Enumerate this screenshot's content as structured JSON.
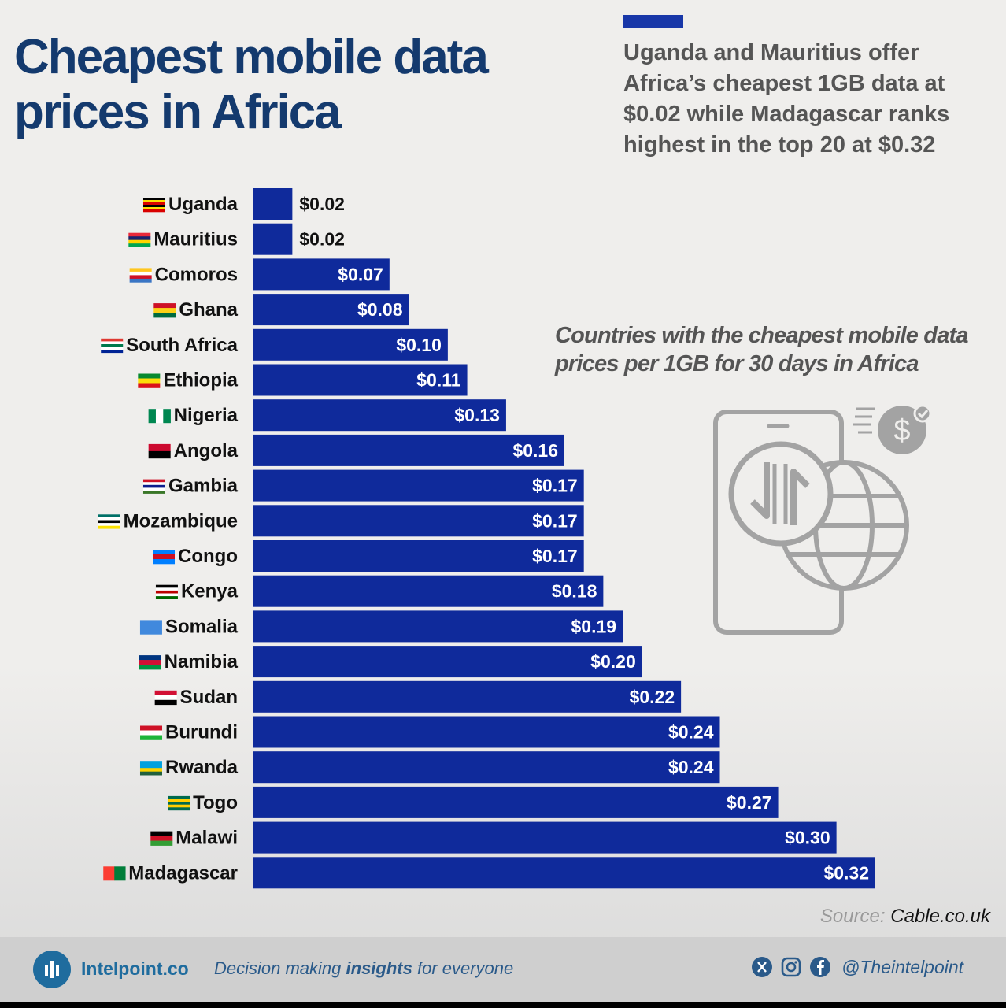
{
  "header": {
    "title_line1": "Cheapest mobile data",
    "title_line2": "prices in Africa",
    "summary": "Uganda and Mauritius offer Africa’s cheapest 1GB data at $0.02 while Madagascar ranks highest in the top 20 at $0.32",
    "subtitle": "Countries with the cheapest mobile data prices per 1GB for 30 days in Africa"
  },
  "source": {
    "label": "Source:",
    "name": "Cable.co.uk"
  },
  "footer": {
    "brand": "Intelpoint.co",
    "tagline_pre": "Decision making ",
    "tagline_bold": "insights",
    "tagline_post": " for everyone",
    "handle": "@Theintelpoint"
  },
  "colors": {
    "bar": "#0f2a9b",
    "title": "#143a6e",
    "accent": "#1837a8"
  },
  "chart_data": {
    "type": "bar",
    "orientation": "horizontal",
    "categories": [
      "Uganda",
      "Mauritius",
      "Comoros",
      "Ghana",
      "South Africa",
      "Ethiopia",
      "Nigeria",
      "Angola",
      "Gambia",
      "Mozambique",
      "Congo",
      "Kenya",
      "Somalia",
      "Namibia",
      "Sudan",
      "Burundi",
      "Rwanda",
      "Togo",
      "Malawi",
      "Madagascar"
    ],
    "values": [
      0.02,
      0.02,
      0.07,
      0.08,
      0.1,
      0.11,
      0.13,
      0.16,
      0.17,
      0.17,
      0.17,
      0.18,
      0.19,
      0.2,
      0.22,
      0.24,
      0.24,
      0.27,
      0.3,
      0.32
    ],
    "value_labels": [
      "$0.02",
      "$0.02",
      "$0.07",
      "$0.08",
      "$0.10",
      "$0.11",
      "$0.13",
      "$0.16",
      "$0.17",
      "$0.17",
      "$0.17",
      "$0.18",
      "$0.19",
      "$0.20",
      "$0.22",
      "$0.24",
      "$0.24",
      "$0.27",
      "$0.30",
      "$0.32"
    ],
    "flags": [
      "flag-uganda",
      "flag-mauritius",
      "flag-comoros",
      "flag-ghana",
      "flag-south-africa",
      "flag-ethiopia",
      "flag-nigeria",
      "flag-angola",
      "flag-gambia",
      "flag-mozambique",
      "flag-congo",
      "flag-kenya",
      "flag-somalia",
      "flag-namibia",
      "flag-sudan",
      "flag-burundi",
      "flag-rwanda",
      "flag-togo",
      "flag-malawi",
      "flag-madagascar"
    ],
    "xlim": [
      0,
      0.32
    ]
  }
}
